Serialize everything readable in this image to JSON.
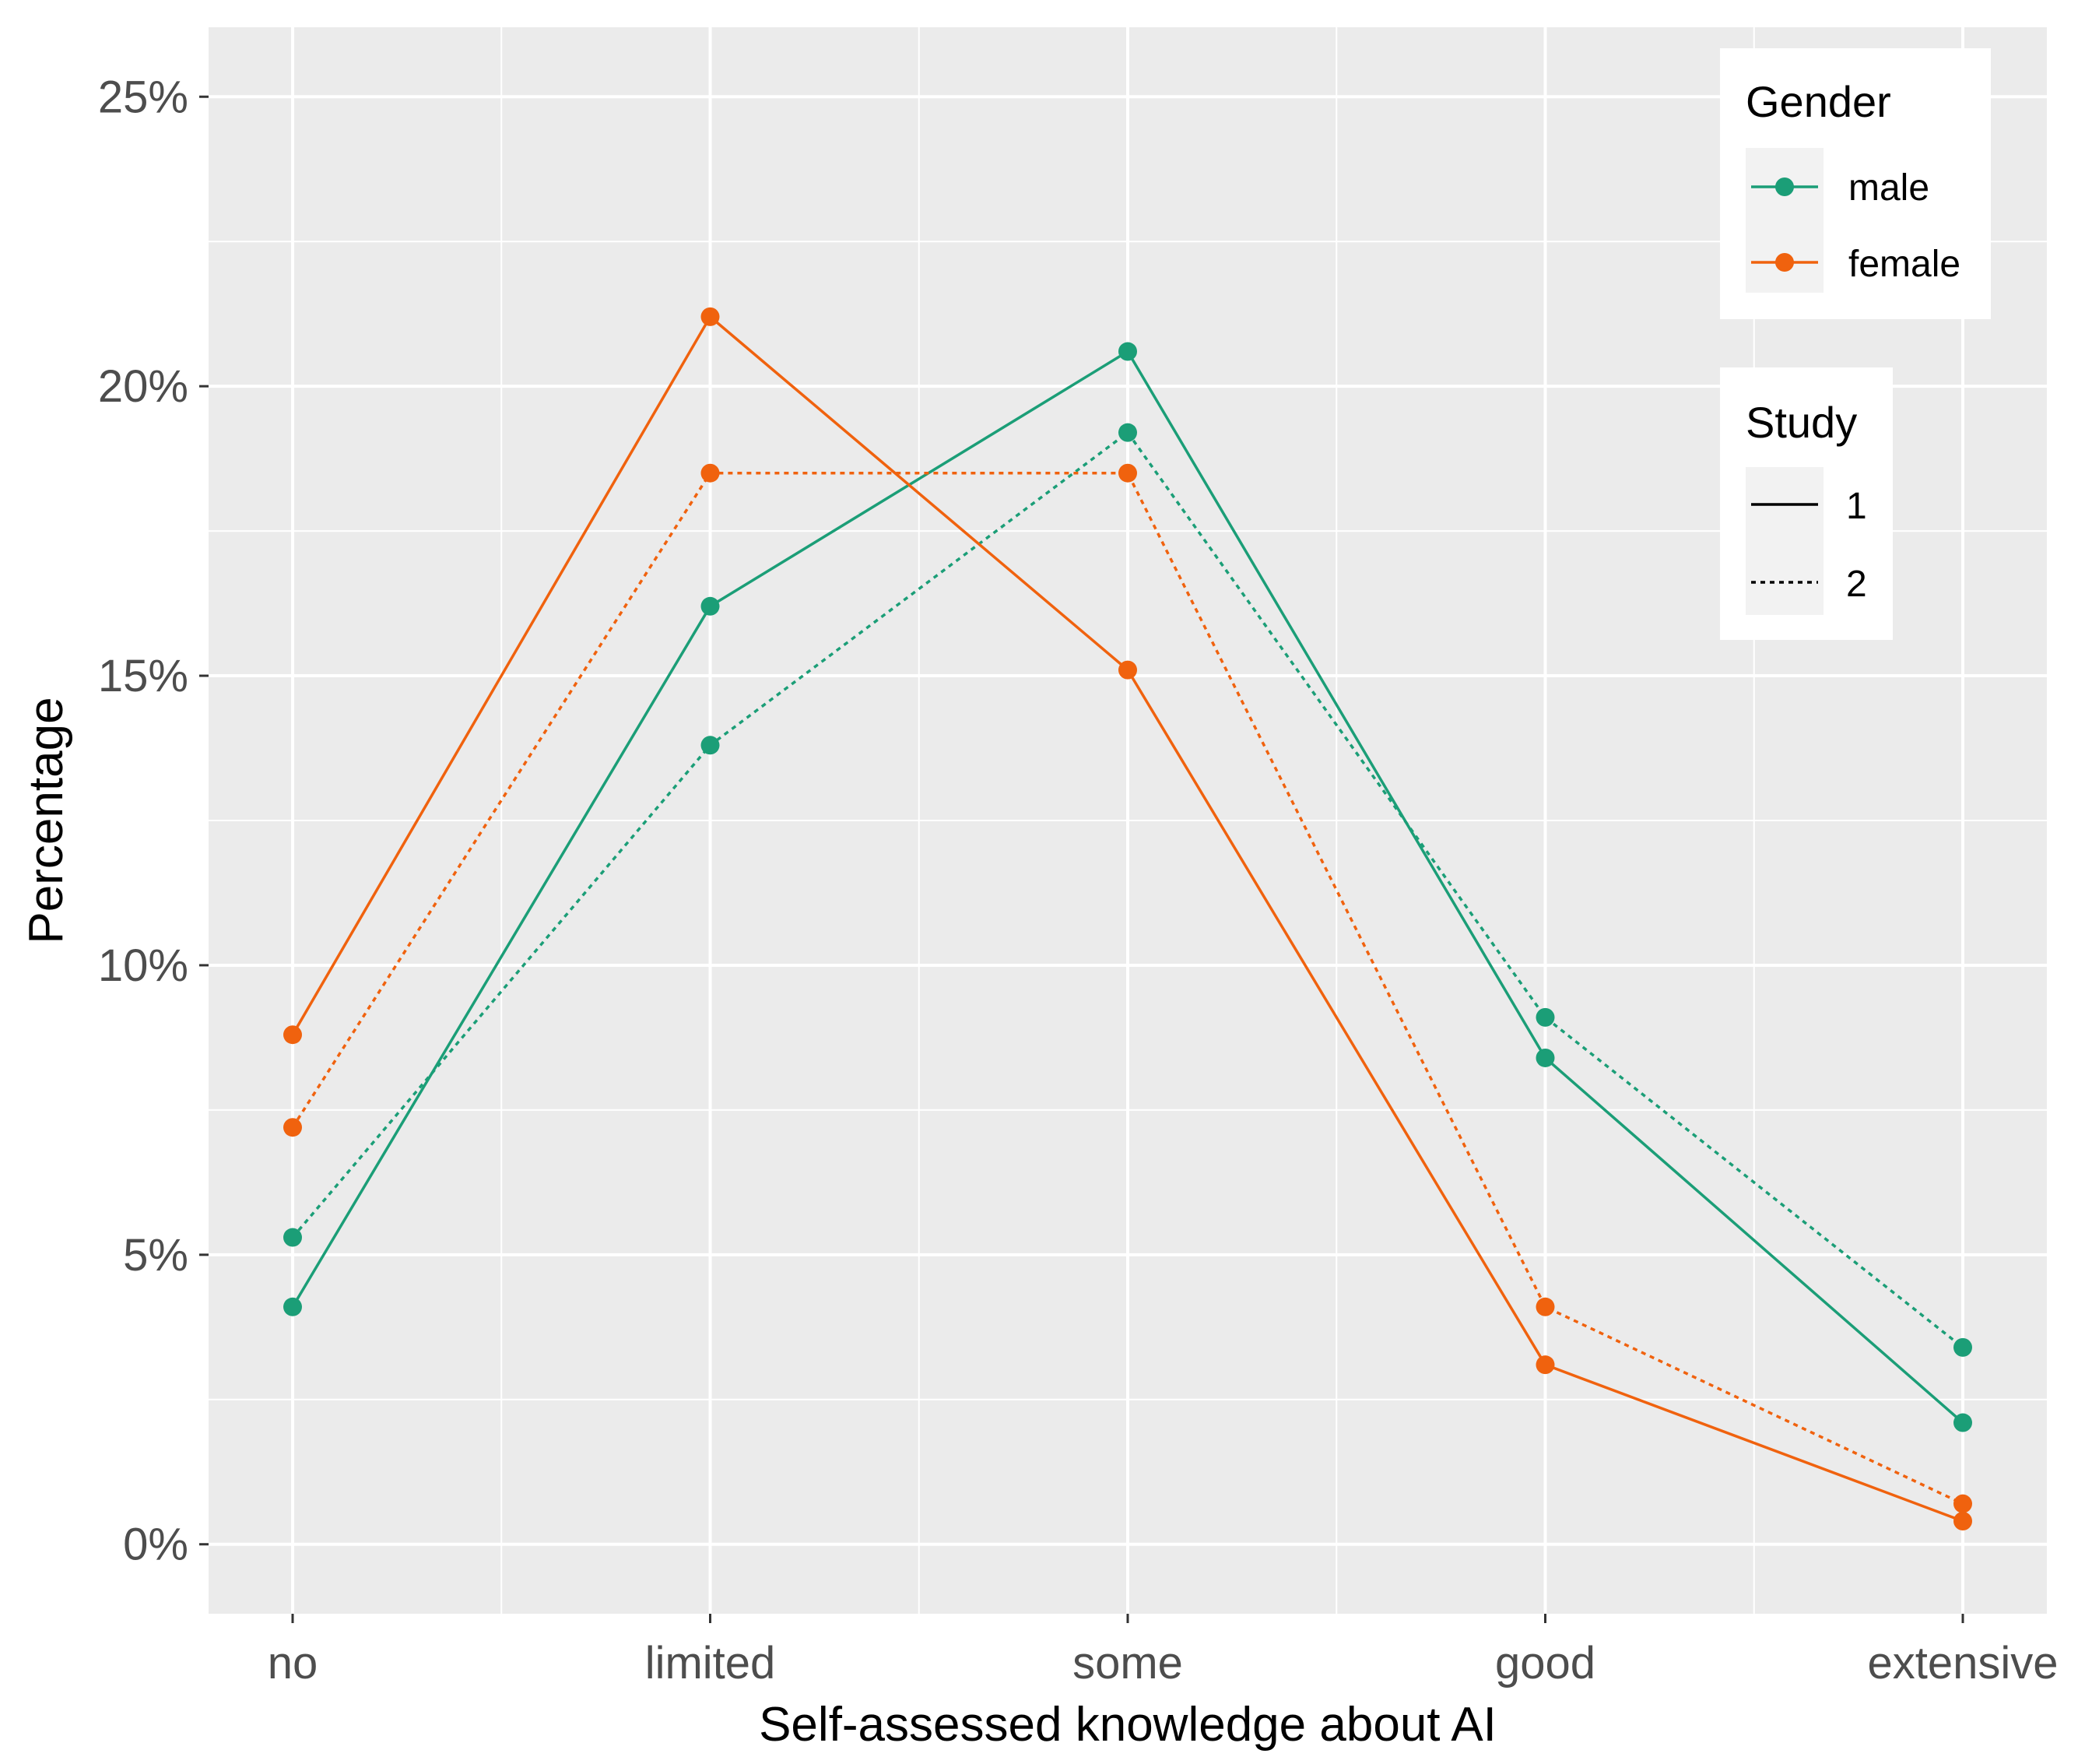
{
  "chart_data": {
    "type": "line",
    "title": "",
    "xlabel": "Self-assessed knowledge about AI",
    "ylabel": "Percentage",
    "categories": [
      "no",
      "limited",
      "some",
      "good",
      "extensive"
    ],
    "ylim": [
      -1.2,
      26.2
    ],
    "yticks": [
      0,
      5,
      10,
      15,
      20,
      25
    ],
    "ytick_labels": [
      "0%",
      "5%",
      "10%",
      "15%",
      "20%",
      "25%"
    ],
    "grid": true,
    "series": [
      {
        "name": "male, Study 1",
        "gender": "male",
        "study": "1",
        "values": [
          4.1,
          16.2,
          20.6,
          8.4,
          2.1
        ]
      },
      {
        "name": "male, Study 2",
        "gender": "male",
        "study": "2",
        "values": [
          5.3,
          13.8,
          19.2,
          9.1,
          3.4
        ]
      },
      {
        "name": "female, Study 1",
        "gender": "female",
        "study": "1",
        "values": [
          8.8,
          21.2,
          15.1,
          3.1,
          0.4
        ]
      },
      {
        "name": "female, Study 2",
        "gender": "female",
        "study": "2",
        "values": [
          7.2,
          18.5,
          18.5,
          4.1,
          0.7
        ]
      }
    ],
    "legend": {
      "placement": "top-right",
      "gender": {
        "title": "Gender",
        "entries": [
          {
            "label": "male",
            "color": "#1b9e77"
          },
          {
            "label": "female",
            "color": "#f0620e"
          }
        ]
      },
      "study": {
        "title": "Study",
        "entries": [
          {
            "label": "1",
            "linetype": "solid"
          },
          {
            "label": "2",
            "linetype": "dotted"
          }
        ]
      }
    },
    "colors": {
      "male": "#1b9e77",
      "female": "#f0620e",
      "panel": "#ebebeb",
      "grid": "#ffffff"
    }
  }
}
